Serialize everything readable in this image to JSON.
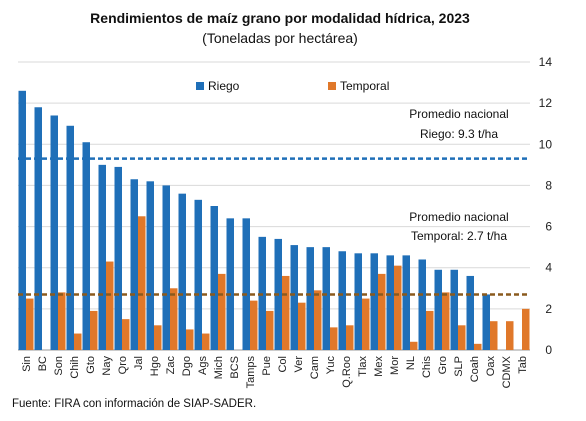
{
  "chart_data": {
    "type": "bar",
    "title": "Rendimientos de maíz grano por modalidad hídrica, 2023",
    "subtitle": "(Toneladas por hectárea)",
    "source": "Fuente: FIRA con información de SIAP-SADER.",
    "categories": [
      "Sin",
      "BC",
      "Son",
      "Chih",
      "Gto",
      "Nay",
      "Qro",
      "Jal",
      "Hgo",
      "Zac",
      "Dgo",
      "Ags",
      "Mich",
      "BCS",
      "Tamps",
      "Pue",
      "Col",
      "Ver",
      "Cam",
      "Yuc",
      "Q.Roo",
      "Tlax",
      "Mex",
      "Mor",
      "NL",
      "Chis",
      "Gro",
      "SLP",
      "Coah",
      "Oax",
      "CDMX",
      "Tab"
    ],
    "series": [
      {
        "name": "Riego",
        "color": "#1f6fb8",
        "values": [
          12.6,
          11.8,
          11.4,
          10.9,
          10.1,
          9.0,
          8.9,
          8.3,
          8.2,
          8.0,
          7.6,
          7.3,
          7.0,
          6.4,
          6.4,
          5.5,
          5.4,
          5.1,
          5.0,
          5.0,
          4.8,
          4.7,
          4.7,
          4.6,
          4.6,
          4.4,
          3.9,
          3.9,
          3.6,
          2.7,
          null,
          null
        ]
      },
      {
        "name": "Temporal",
        "color": "#e0782a",
        "values": [
          2.5,
          null,
          2.8,
          0.8,
          1.9,
          4.3,
          1.5,
          6.5,
          1.2,
          3.0,
          1.0,
          0.8,
          3.7,
          null,
          2.4,
          1.9,
          3.6,
          2.3,
          2.9,
          1.1,
          1.2,
          2.5,
          3.7,
          4.1,
          0.4,
          1.9,
          2.8,
          1.2,
          0.3,
          1.4,
          1.4,
          2.0
        ]
      }
    ],
    "ylim": [
      0,
      14
    ],
    "yticks": [
      0,
      2,
      4,
      6,
      8,
      10,
      12,
      14
    ],
    "yaxis_side": "right",
    "grid": true,
    "legend": "top-center",
    "references": [
      {
        "name": "Promedio nacional Riego",
        "value": 9.3,
        "label_line1": "Promedio nacional",
        "label_line2": "Riego: 9.3 t/ha",
        "color": "#1f6fb8"
      },
      {
        "name": "Promedio nacional Temporal",
        "value": 2.7,
        "label_line1": "Promedio nacional",
        "label_line2": "Temporal: 2.7 t/ha",
        "color": "#8a5a1e"
      }
    ]
  }
}
